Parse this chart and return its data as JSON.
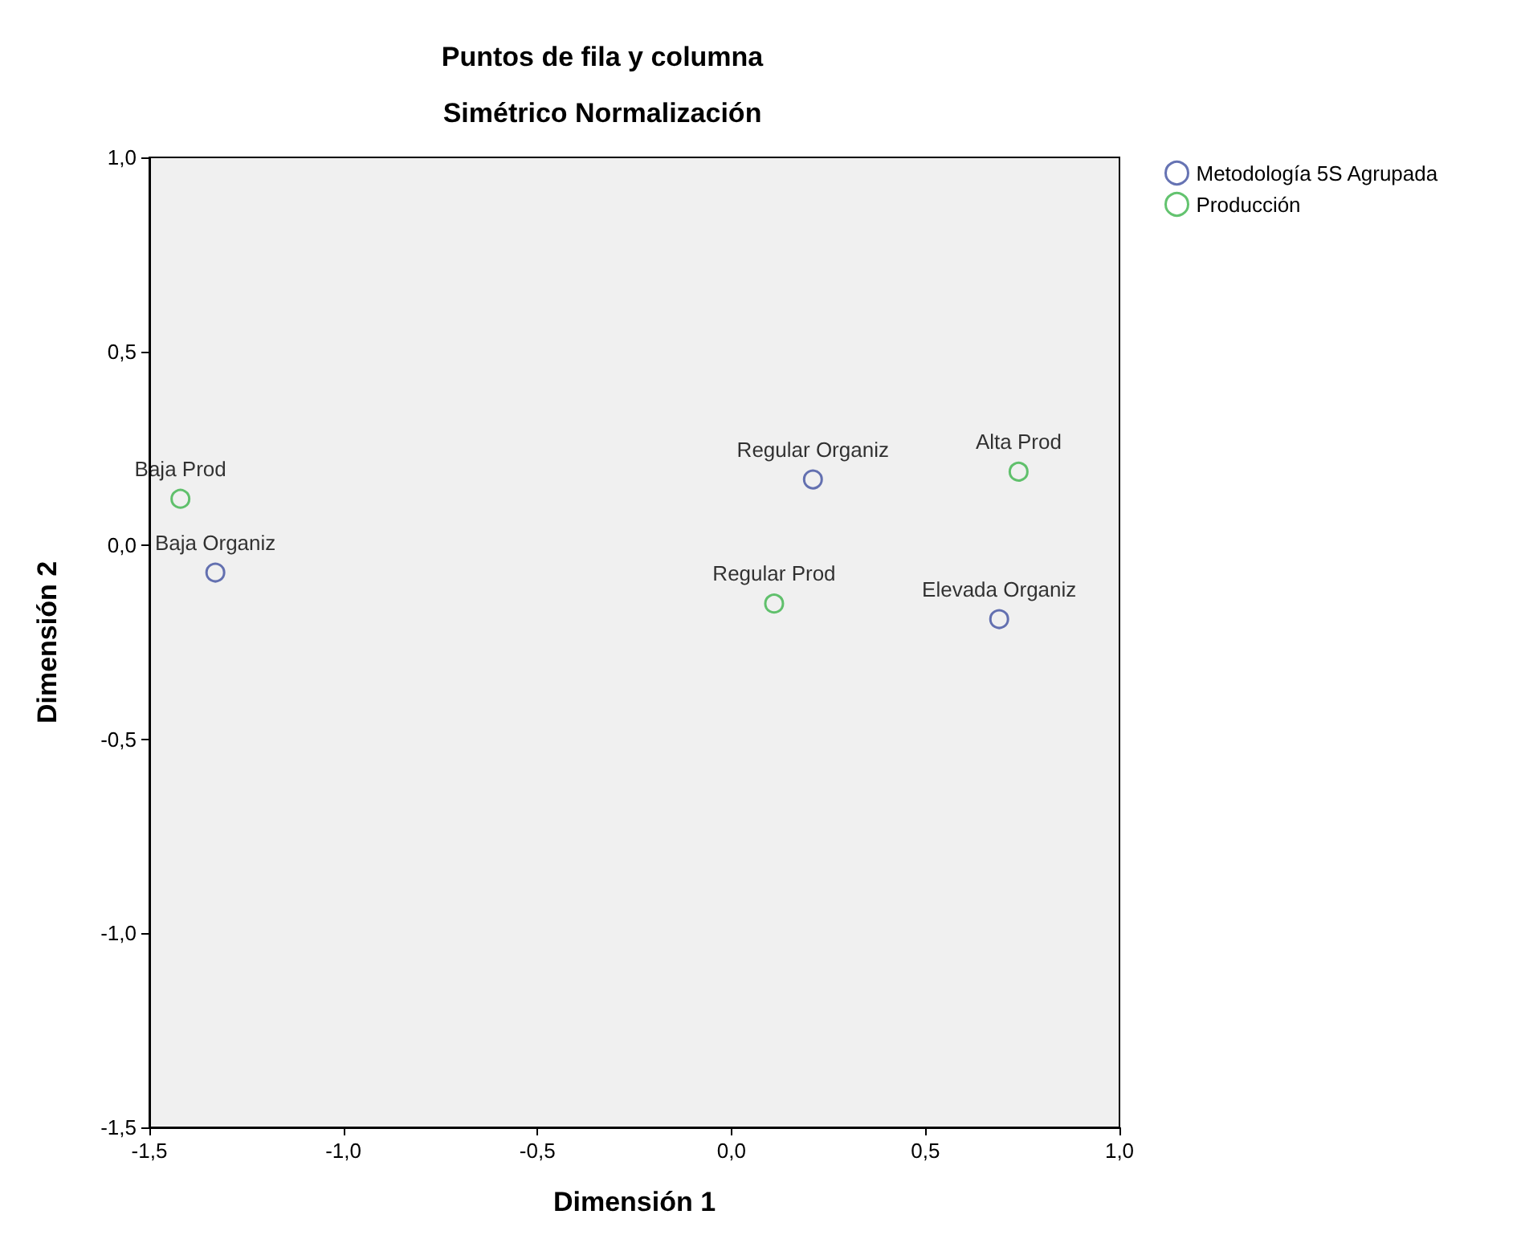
{
  "chart_data": {
    "type": "scatter",
    "title": "Puntos de fila y columna",
    "subtitle": "Simétrico Normalización",
    "xlabel": "Dimensión 1",
    "ylabel": "Dimensión 2",
    "xlim": [
      -1.5,
      1.0
    ],
    "ylim": [
      -1.5,
      1.0
    ],
    "xticks": [
      {
        "value": -1.5,
        "label": "-1,5"
      },
      {
        "value": -1.0,
        "label": "-1,0"
      },
      {
        "value": -0.5,
        "label": "-0,5"
      },
      {
        "value": 0,
        "label": "0,0"
      },
      {
        "value": 0.5,
        "label": "0,5"
      },
      {
        "value": 1.0,
        "label": "1,0"
      }
    ],
    "yticks": [
      {
        "value": -1.5,
        "label": "-1,5"
      },
      {
        "value": -1.0,
        "label": "-1,0"
      },
      {
        "value": -0.5,
        "label": "-0,5"
      },
      {
        "value": 0,
        "label": "0,0"
      },
      {
        "value": 0.5,
        "label": "0,5"
      },
      {
        "value": 1.0,
        "label": "1,0"
      }
    ],
    "series": [
      {
        "name": "Metodología 5S Agrupada",
        "color": "#4050a0",
        "x": [
          -1.33,
          0.21,
          0.69
        ],
        "values": [
          -0.07,
          0.17,
          -0.19
        ],
        "value_labels": [
          "Baja Organiz",
          "Regular Organiz",
          "Elevada Organiz"
        ]
      },
      {
        "name": "Producción",
        "color": "#3cb44b",
        "x": [
          -1.42,
          0.74,
          0.11
        ],
        "values": [
          0.12,
          0.19,
          -0.15
        ],
        "value_labels": [
          "Baja Prod",
          "Alta Prod",
          "Regular Prod"
        ]
      }
    ],
    "marker": "circle",
    "grid": false,
    "legend": "top right"
  }
}
